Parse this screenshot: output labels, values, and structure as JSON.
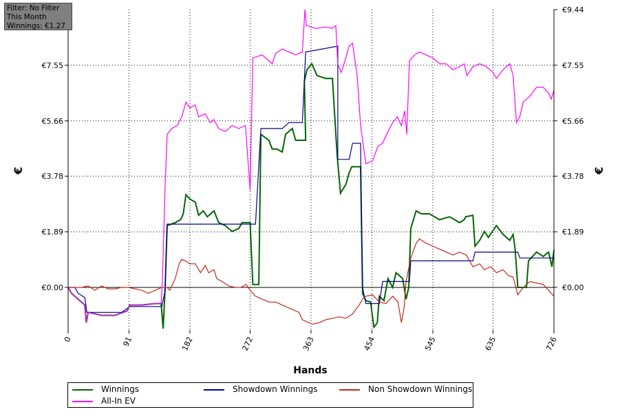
{
  "filter": {
    "line1": "Filter: No Filter",
    "line2": "This Month",
    "line3": "Winnings: €1.27"
  },
  "chart_data": {
    "type": "line",
    "xlabel": "Hands",
    "ylabel": "€",
    "xlim": [
      0,
      726
    ],
    "ylim": [
      -1.45,
      9.44
    ],
    "x_ticks": [
      "0",
      "91",
      "182",
      "272",
      "363",
      "454",
      "545",
      "635",
      "726"
    ],
    "x_tick_values": [
      0,
      91,
      182,
      272,
      363,
      454,
      545,
      635,
      726
    ],
    "y_ticks": [
      "€0.00",
      "€1.89",
      "€3.78",
      "€5.66",
      "€7.55",
      "€9.44"
    ],
    "y_tick_values": [
      0,
      1.89,
      3.78,
      5.66,
      7.55,
      9.44
    ],
    "grid": true,
    "legend_position": "bottom",
    "series": [
      {
        "name": "Winnings",
        "color": "#006400",
        "points": [
          [
            0,
            0
          ],
          [
            5,
            -0.2
          ],
          [
            15,
            -0.4
          ],
          [
            25,
            -0.6
          ],
          [
            27,
            -1.2
          ],
          [
            30,
            -0.85
          ],
          [
            50,
            -0.95
          ],
          [
            70,
            -0.95
          ],
          [
            88,
            -0.8
          ],
          [
            92,
            -0.6
          ],
          [
            110,
            -0.6
          ],
          [
            130,
            -0.55
          ],
          [
            139,
            -0.55
          ],
          [
            142,
            -1.4
          ],
          [
            145,
            0.0
          ],
          [
            148,
            2.1
          ],
          [
            160,
            2.2
          ],
          [
            168,
            2.3
          ],
          [
            172,
            2.5
          ],
          [
            176,
            3.15
          ],
          [
            182,
            3.0
          ],
          [
            190,
            2.9
          ],
          [
            195,
            2.45
          ],
          [
            202,
            2.6
          ],
          [
            208,
            2.4
          ],
          [
            218,
            2.6
          ],
          [
            225,
            2.2
          ],
          [
            235,
            2.1
          ],
          [
            245,
            1.9
          ],
          [
            255,
            2.0
          ],
          [
            260,
            2.2
          ],
          [
            266,
            2.2
          ],
          [
            272,
            2.2
          ],
          [
            276,
            0.1
          ],
          [
            285,
            0.1
          ],
          [
            288,
            5.2
          ],
          [
            300,
            5.0
          ],
          [
            305,
            4.7
          ],
          [
            312,
            4.7
          ],
          [
            320,
            4.6
          ],
          [
            325,
            5.2
          ],
          [
            335,
            5.4
          ],
          [
            340,
            5.0
          ],
          [
            350,
            5.0
          ],
          [
            355,
            5.0
          ],
          [
            353,
            7.0
          ],
          [
            357,
            7.4
          ],
          [
            364,
            7.6
          ],
          [
            372,
            7.2
          ],
          [
            385,
            7.1
          ],
          [
            395,
            7.1
          ],
          [
            402,
            4.5
          ],
          [
            407,
            3.2
          ],
          [
            415,
            3.5
          ],
          [
            420,
            3.9
          ],
          [
            424,
            4.1
          ],
          [
            437,
            4.1
          ],
          [
            440,
            -0.2
          ],
          [
            445,
            -0.45
          ],
          [
            452,
            -0.5
          ],
          [
            457,
            -1.35
          ],
          [
            462,
            -1.2
          ],
          [
            465,
            -0.3
          ],
          [
            472,
            -0.45
          ],
          [
            478,
            0.3
          ],
          [
            485,
            0.0
          ],
          [
            490,
            0.5
          ],
          [
            500,
            0.3
          ],
          [
            505,
            -0.4
          ],
          [
            509,
            0.0
          ],
          [
            512,
            2.0
          ],
          [
            520,
            2.6
          ],
          [
            528,
            2.5
          ],
          [
            540,
            2.5
          ],
          [
            555,
            2.3
          ],
          [
            570,
            2.4
          ],
          [
            585,
            2.2
          ],
          [
            592,
            2.3
          ],
          [
            594,
            2.4
          ],
          [
            605,
            2.45
          ],
          [
            608,
            1.4
          ],
          [
            615,
            1.6
          ],
          [
            622,
            1.9
          ],
          [
            628,
            1.7
          ],
          [
            640,
            2.1
          ],
          [
            650,
            1.8
          ],
          [
            660,
            1.6
          ],
          [
            665,
            1.8
          ],
          [
            668,
            1.3
          ],
          [
            672,
            0.0
          ],
          [
            685,
            0.0
          ],
          [
            688,
            0.9
          ],
          [
            700,
            1.2
          ],
          [
            710,
            1.05
          ],
          [
            718,
            1.2
          ],
          [
            723,
            0.7
          ],
          [
            726,
            1.27
          ]
        ]
      },
      {
        "name": "Showdown Winnings",
        "color": "#00008b",
        "points": [
          [
            0,
            0
          ],
          [
            10,
            0
          ],
          [
            15,
            -0.2
          ],
          [
            25,
            -0.35
          ],
          [
            28,
            -0.85
          ],
          [
            80,
            -0.85
          ],
          [
            92,
            -0.65
          ],
          [
            140,
            -0.65
          ],
          [
            145,
            -0.1
          ],
          [
            148,
            2.15
          ],
          [
            280,
            2.15
          ],
          [
            288,
            5.4
          ],
          [
            320,
            5.4
          ],
          [
            330,
            5.6
          ],
          [
            350,
            5.6
          ],
          [
            355,
            8.0
          ],
          [
            403,
            8.2
          ],
          [
            403,
            4.35
          ],
          [
            420,
            4.35
          ],
          [
            425,
            4.9
          ],
          [
            437,
            4.9
          ],
          [
            440,
            0.0
          ],
          [
            445,
            -0.55
          ],
          [
            465,
            -0.55
          ],
          [
            470,
            0.2
          ],
          [
            480,
            0.2
          ],
          [
            510,
            0.2
          ],
          [
            512,
            0.9
          ],
          [
            605,
            0.9
          ],
          [
            608,
            1.2
          ],
          [
            620,
            1.2
          ],
          [
            625,
            1.2
          ],
          [
            672,
            1.2
          ],
          [
            675,
            1.0
          ],
          [
            726,
            1.0
          ]
        ]
      },
      {
        "name": "Non Showdown Winnings",
        "color": "#c0281e",
        "points": [
          [
            0,
            0
          ],
          [
            10,
            0
          ],
          [
            20,
            0.0
          ],
          [
            30,
            0.05
          ],
          [
            40,
            -0.1
          ],
          [
            50,
            0.05
          ],
          [
            60,
            -0.05
          ],
          [
            70,
            -0.05
          ],
          [
            80,
            0.0
          ],
          [
            90,
            0.0
          ],
          [
            100,
            -0.05
          ],
          [
            110,
            -0.1
          ],
          [
            120,
            -0.2
          ],
          [
            130,
            -0.1
          ],
          [
            140,
            0.0
          ],
          [
            148,
            0.0
          ],
          [
            152,
            -0.1
          ],
          [
            160,
            0.3
          ],
          [
            166,
            0.8
          ],
          [
            170,
            0.95
          ],
          [
            175,
            0.9
          ],
          [
            182,
            0.8
          ],
          [
            190,
            0.8
          ],
          [
            198,
            0.5
          ],
          [
            205,
            0.75
          ],
          [
            210,
            0.5
          ],
          [
            218,
            0.6
          ],
          [
            222,
            0.3
          ],
          [
            230,
            0.2
          ],
          [
            240,
            0.05
          ],
          [
            250,
            0.0
          ],
          [
            258,
            0.0
          ],
          [
            266,
            0.1
          ],
          [
            272,
            -0.1
          ],
          [
            280,
            -0.3
          ],
          [
            290,
            -0.4
          ],
          [
            300,
            -0.5
          ],
          [
            310,
            -0.5
          ],
          [
            320,
            -0.6
          ],
          [
            330,
            -0.7
          ],
          [
            335,
            -0.75
          ],
          [
            345,
            -0.85
          ],
          [
            350,
            -1.1
          ],
          [
            355,
            -1.15
          ],
          [
            365,
            -1.25
          ],
          [
            375,
            -1.2
          ],
          [
            385,
            -1.1
          ],
          [
            395,
            -1.05
          ],
          [
            405,
            -1.0
          ],
          [
            415,
            -1.05
          ],
          [
            425,
            -0.9
          ],
          [
            435,
            -0.6
          ],
          [
            440,
            -0.4
          ],
          [
            445,
            -0.3
          ],
          [
            455,
            -0.25
          ],
          [
            465,
            -0.5
          ],
          [
            475,
            -0.55
          ],
          [
            485,
            -0.3
          ],
          [
            493,
            -0.5
          ],
          [
            498,
            -1.2
          ],
          [
            502,
            -0.7
          ],
          [
            505,
            0.2
          ],
          [
            512,
            1.0
          ],
          [
            520,
            1.5
          ],
          [
            525,
            1.65
          ],
          [
            535,
            1.5
          ],
          [
            545,
            1.4
          ],
          [
            555,
            1.3
          ],
          [
            565,
            1.2
          ],
          [
            575,
            1.1
          ],
          [
            585,
            1.2
          ],
          [
            595,
            1.1
          ],
          [
            605,
            0.7
          ],
          [
            615,
            0.8
          ],
          [
            622,
            0.6
          ],
          [
            632,
            0.7
          ],
          [
            640,
            0.5
          ],
          [
            650,
            0.6
          ],
          [
            658,
            0.4
          ],
          [
            665,
            0.35
          ],
          [
            672,
            -0.25
          ],
          [
            680,
            0.0
          ],
          [
            690,
            0.2
          ],
          [
            700,
            0.15
          ],
          [
            710,
            0.1
          ],
          [
            718,
            -0.1
          ],
          [
            726,
            -0.3
          ]
        ]
      },
      {
        "name": "All-In EV",
        "color": "#ff00ff",
        "points": [
          [
            0,
            0
          ],
          [
            5,
            -0.2
          ],
          [
            15,
            -0.4
          ],
          [
            25,
            -0.6
          ],
          [
            27,
            -1.2
          ],
          [
            30,
            -0.85
          ],
          [
            50,
            -0.95
          ],
          [
            70,
            -0.95
          ],
          [
            88,
            -0.8
          ],
          [
            92,
            -0.6
          ],
          [
            110,
            -0.6
          ],
          [
            130,
            -0.55
          ],
          [
            139,
            -0.55
          ],
          [
            141,
            0.3
          ],
          [
            145,
            3.5
          ],
          [
            148,
            5.2
          ],
          [
            155,
            5.4
          ],
          [
            163,
            5.5
          ],
          [
            170,
            5.8
          ],
          [
            176,
            6.3
          ],
          [
            182,
            6.1
          ],
          [
            190,
            6.2
          ],
          [
            195,
            5.8
          ],
          [
            205,
            5.9
          ],
          [
            212,
            5.6
          ],
          [
            218,
            5.7
          ],
          [
            225,
            5.4
          ],
          [
            235,
            5.3
          ],
          [
            245,
            5.5
          ],
          [
            255,
            5.4
          ],
          [
            265,
            5.5
          ],
          [
            272,
            3.3
          ],
          [
            276,
            7.8
          ],
          [
            290,
            7.9
          ],
          [
            300,
            7.7
          ],
          [
            305,
            7.6
          ],
          [
            310,
            7.95
          ],
          [
            320,
            8.1
          ],
          [
            330,
            8.0
          ],
          [
            340,
            7.9
          ],
          [
            350,
            8.0
          ],
          [
            354,
            9.44
          ],
          [
            356,
            8.9
          ],
          [
            370,
            8.8
          ],
          [
            385,
            8.85
          ],
          [
            395,
            8.8
          ],
          [
            400,
            8.9
          ],
          [
            403,
            7.6
          ],
          [
            408,
            7.3
          ],
          [
            415,
            7.8
          ],
          [
            420,
            8.2
          ],
          [
            425,
            8.3
          ],
          [
            432,
            7.2
          ],
          [
            437,
            5.5
          ],
          [
            445,
            4.2
          ],
          [
            455,
            4.3
          ],
          [
            463,
            4.8
          ],
          [
            470,
            4.9
          ],
          [
            478,
            5.3
          ],
          [
            485,
            5.6
          ],
          [
            492,
            5.8
          ],
          [
            498,
            5.5
          ],
          [
            503,
            6.0
          ],
          [
            506,
            5.2
          ],
          [
            510,
            7.7
          ],
          [
            518,
            7.9
          ],
          [
            525,
            8.0
          ],
          [
            535,
            7.9
          ],
          [
            545,
            7.8
          ],
          [
            555,
            7.6
          ],
          [
            565,
            7.6
          ],
          [
            575,
            7.4
          ],
          [
            585,
            7.5
          ],
          [
            592,
            7.6
          ],
          [
            596,
            7.2
          ],
          [
            605,
            7.5
          ],
          [
            615,
            7.6
          ],
          [
            625,
            7.5
          ],
          [
            635,
            7.3
          ],
          [
            640,
            7.1
          ],
          [
            650,
            7.4
          ],
          [
            660,
            7.6
          ],
          [
            665,
            7.2
          ],
          [
            670,
            5.6
          ],
          [
            675,
            5.8
          ],
          [
            680,
            6.3
          ],
          [
            690,
            6.5
          ],
          [
            700,
            6.8
          ],
          [
            710,
            6.8
          ],
          [
            718,
            6.6
          ],
          [
            722,
            6.4
          ],
          [
            726,
            6.7
          ]
        ]
      }
    ]
  }
}
